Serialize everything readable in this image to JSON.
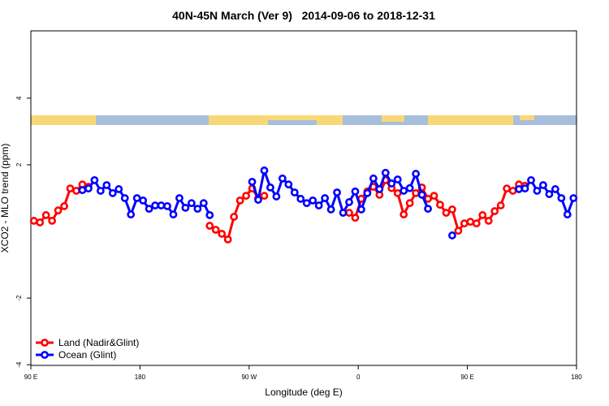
{
  "chart_data": {
    "type": "line",
    "title": "40N-45N March (Ver 9)   2014-09-06 to 2018-12-31",
    "xlabel": "Longitude (deg E)",
    "ylabel": "XCO2 - MLO trend (ppm)",
    "xlim": [
      90,
      540
    ],
    "xticks": [
      {
        "value": 90,
        "label": "90 E"
      },
      180,
      {
        "value": 270,
        "label": "90 W"
      },
      {
        "value": 360,
        "label": "0"
      },
      {
        "value": 450,
        "label": "90 E"
      },
      {
        "value": 540,
        "label": "180"
      }
    ],
    "ylim": [
      -4.02,
      6.02
    ],
    "yticks": [
      4,
      2,
      -2,
      -4
    ],
    "legend": "bottom-left",
    "x": [
      92.5,
      97.5,
      102.5,
      107.5,
      112.5,
      117.5,
      122.5,
      127.5,
      132.5,
      137.5,
      142.5,
      147.5,
      152.5,
      157.5,
      162.5,
      167.5,
      172.5,
      177.5,
      182.5,
      187.5,
      192.5,
      197.5,
      202.5,
      207.5,
      212.5,
      217.5,
      222.5,
      227.5,
      232.5,
      237.5,
      242.5,
      247.5,
      252.5,
      257.5,
      262.5,
      267.5,
      272.5,
      277.5,
      282.5,
      287.5,
      292.5,
      297.5,
      302.5,
      307.5,
      312.5,
      317.5,
      322.5,
      327.5,
      332.5,
      337.5,
      342.5,
      347.5,
      352.5,
      357.5,
      362.5,
      367.5,
      372.5,
      377.5,
      382.5,
      387.5,
      392.5,
      397.5,
      402.5,
      407.5,
      412.5,
      417.5,
      422.5,
      427.5,
      432.5,
      437.5,
      442.5,
      447.5,
      452.5,
      457.5,
      462.5,
      467.5,
      472.5,
      477.5,
      482.5,
      487.5,
      492.5,
      497.5,
      502.5,
      507.5,
      512.5,
      517.5,
      522.5,
      527.5,
      532.5,
      537.5
    ],
    "series": [
      {
        "name": "Land (Nadir&Glint)",
        "color": "#ff0000",
        "values": [
          0.32,
          0.27,
          0.49,
          0.32,
          0.63,
          0.76,
          1.29,
          1.22,
          1.41,
          1.34,
          null,
          null,
          null,
          null,
          null,
          null,
          null,
          null,
          null,
          null,
          null,
          null,
          null,
          null,
          null,
          null,
          null,
          null,
          null,
          0.17,
          0.05,
          -0.07,
          -0.24,
          0.44,
          0.93,
          1.07,
          1.29,
          1.0,
          1.07,
          null,
          null,
          null,
          null,
          null,
          null,
          null,
          null,
          null,
          null,
          null,
          null,
          null,
          0.56,
          0.41,
          0.98,
          1.2,
          1.34,
          1.1,
          1.54,
          1.3,
          1.15,
          0.51,
          0.85,
          1.15,
          1.32,
          0.98,
          1.07,
          0.8,
          0.56,
          0.66,
          0.02,
          0.24,
          0.29,
          0.24,
          0.49,
          0.32,
          0.61,
          0.78,
          1.29,
          1.22,
          1.41,
          1.37,
          null,
          null,
          null,
          null,
          null,
          null,
          null,
          null
        ]
      },
      {
        "name": "Ocean (Glint)",
        "color": "#0000ff",
        "values": [
          null,
          null,
          null,
          null,
          null,
          null,
          null,
          null,
          1.24,
          1.29,
          1.54,
          1.22,
          1.39,
          1.15,
          1.27,
          1.0,
          0.51,
          1.0,
          0.93,
          0.68,
          0.78,
          0.78,
          0.76,
          0.51,
          1.0,
          0.71,
          0.85,
          0.68,
          0.85,
          0.49,
          null,
          null,
          null,
          null,
          null,
          null,
          1.49,
          0.95,
          1.83,
          1.32,
          1.05,
          1.59,
          1.41,
          1.17,
          0.98,
          0.85,
          0.93,
          0.78,
          1.0,
          0.66,
          1.17,
          0.56,
          0.88,
          1.2,
          0.66,
          1.15,
          1.59,
          1.27,
          1.76,
          1.44,
          1.56,
          1.22,
          1.3,
          1.73,
          1.1,
          0.68,
          null,
          null,
          null,
          -0.12,
          null,
          null,
          null,
          null,
          null,
          null,
          null,
          null,
          null,
          null,
          1.27,
          1.29,
          1.54,
          1.22,
          1.39,
          1.12,
          1.27,
          1.0,
          0.51,
          1.0
        ]
      }
    ]
  }
}
